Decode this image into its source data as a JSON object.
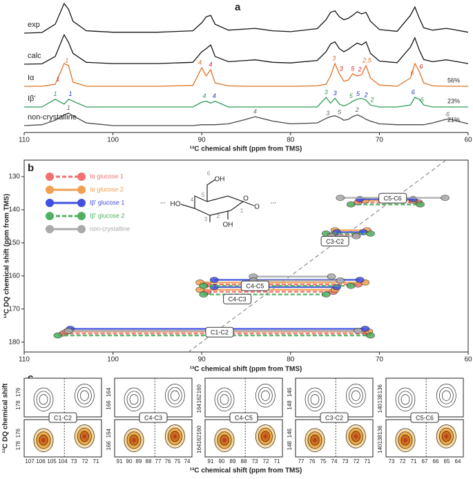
{
  "chart_data": [
    {
      "type": "line",
      "panel_label": "a",
      "x_label": "¹³C chemical shift (ppm from TMS)",
      "xlim": [
        110,
        60
      ],
      "xticks": [
        110,
        100,
        90,
        80,
        70,
        60
      ],
      "x": [
        110,
        108,
        106.5,
        105.5,
        105,
        104.5,
        103,
        100,
        95,
        91,
        90,
        89.5,
        89,
        88.5,
        87,
        85,
        84,
        82,
        80,
        77,
        76,
        75.5,
        75,
        74.5,
        74,
        73.5,
        73,
        72.5,
        72,
        71.5,
        71,
        70,
        68,
        66.5,
        66,
        65.5,
        65,
        64,
        62.5,
        62,
        60
      ],
      "series": [
        {
          "name": "exp",
          "color": "#111111",
          "values": [
            0,
            2,
            30,
            100,
            80,
            40,
            8,
            3,
            3,
            8,
            35,
            55,
            60,
            30,
            10,
            14,
            16,
            8,
            5,
            15,
            45,
            70,
            75,
            55,
            45,
            50,
            60,
            72,
            65,
            70,
            40,
            12,
            6,
            60,
            88,
            50,
            18,
            10,
            16,
            14,
            3
          ]
        },
        {
          "name": "calc",
          "color": "#111111",
          "values": [
            0,
            1,
            25,
            95,
            70,
            35,
            6,
            2,
            2,
            6,
            40,
            50,
            62,
            25,
            8,
            12,
            14,
            6,
            4,
            12,
            40,
            65,
            72,
            50,
            40,
            48,
            58,
            68,
            62,
            72,
            35,
            10,
            5,
            55,
            85,
            45,
            15,
            8,
            14,
            12,
            2
          ]
        },
        {
          "name": "Iα",
          "color": "#e07020",
          "share": "56%",
          "values": [
            0,
            0,
            5,
            55,
            50,
            10,
            0,
            0,
            0,
            2,
            45,
            25,
            40,
            8,
            1,
            0,
            0,
            0,
            0,
            1,
            5,
            25,
            55,
            30,
            12,
            15,
            30,
            25,
            28,
            50,
            20,
            3,
            0,
            20,
            55,
            35,
            8,
            1,
            0,
            0,
            0
          ],
          "annotations": [
            {
              "x": 106.2,
              "label": "1",
              "color": "#d62020"
            },
            {
              "x": 105.2,
              "label": "1",
              "color": "#e07020"
            },
            {
              "x": 90.2,
              "label": "4",
              "color": "#e07020"
            },
            {
              "x": 89,
              "label": "4",
              "color": "#d62020"
            },
            {
              "x": 75.1,
              "label": "3",
              "color": "#e07020"
            },
            {
              "x": 74.3,
              "label": "3",
              "color": "#d62020"
            },
            {
              "x": 73,
              "label": "5",
              "color": "#d62020"
            },
            {
              "x": 72.2,
              "label": "2",
              "color": "#d62020"
            },
            {
              "x": 71.4,
              "label": "2,5",
              "color": "#e07020"
            },
            {
              "x": 66.3,
              "label": "6",
              "color": "#e07020"
            },
            {
              "x": 65.3,
              "label": "6",
              "color": "#d62020"
            }
          ]
        },
        {
          "name": "Iβ'",
          "color": "#2e9b57",
          "share": "23%",
          "values": [
            0,
            0,
            8,
            3,
            8,
            6,
            0,
            0,
            0,
            0,
            5,
            6,
            4,
            6,
            0,
            0,
            0,
            0,
            0,
            0,
            10,
            4,
            9,
            3,
            1,
            3,
            6,
            8,
            9,
            7,
            2,
            0,
            0,
            2,
            10,
            8,
            2,
            0,
            0,
            0,
            0
          ],
          "annotations": [
            {
              "x": 106.5,
              "label": "1",
              "color": "#2e9b57"
            },
            {
              "x": 104.8,
              "label": "1",
              "color": "#2030c0"
            },
            {
              "x": 89.7,
              "label": "4",
              "color": "#2e9b57"
            },
            {
              "x": 88.6,
              "label": "4",
              "color": "#2030c0"
            },
            {
              "x": 76,
              "label": "3",
              "color": "#2e9b57"
            },
            {
              "x": 75,
              "label": "3",
              "color": "#2030c0"
            },
            {
              "x": 73.2,
              "label": "5",
              "color": "#2e9b57"
            },
            {
              "x": 72.4,
              "label": "5",
              "color": "#2030c0"
            },
            {
              "x": 71.5,
              "label": "2",
              "color": "#2030c0"
            },
            {
              "x": 70.8,
              "label": "2",
              "color": "#2e9b57"
            },
            {
              "x": 66.2,
              "label": "6",
              "color": "#2030c0"
            },
            {
              "x": 65.2,
              "label": "6",
              "color": "#2e9b57"
            }
          ]
        },
        {
          "name": "non-crystalline",
          "color": "#444444",
          "share": "21%",
          "values": [
            0,
            1,
            6,
            12,
            14,
            11,
            3,
            0,
            0,
            0,
            1,
            1,
            1,
            1,
            2,
            7,
            10,
            5,
            2,
            3,
            8,
            10,
            11,
            9,
            6,
            7,
            10,
            12,
            10,
            7,
            5,
            2,
            1,
            1,
            1,
            1,
            1,
            3,
            7,
            7,
            2
          ],
          "annotations": [
            {
              "x": 105,
              "label": "1",
              "color": "#666666"
            },
            {
              "x": 84,
              "label": "4",
              "color": "#666666"
            },
            {
              "x": 75.8,
              "label": "3",
              "color": "#666666"
            },
            {
              "x": 74.5,
              "label": "5",
              "color": "#666666"
            },
            {
              "x": 72.5,
              "label": "2",
              "color": "#666666"
            },
            {
              "x": 62.3,
              "label": "6",
              "color": "#666666"
            }
          ]
        }
      ]
    },
    {
      "type": "scatter",
      "panel_label": "b",
      "x_label": "¹³C chemical shift (ppm from TMS)",
      "y_label": "¹³C DQ chemical shift (ppm from TMS)",
      "xlim": [
        110,
        60
      ],
      "xticks": [
        110,
        100,
        90,
        80,
        70,
        60
      ],
      "ylim": [
        125,
        183
      ],
      "yticks": [
        130,
        140,
        150,
        160,
        170,
        180
      ],
      "series": [
        {
          "name": "Iα glucose 1",
          "color": "#f07070",
          "dash": true,
          "segments": [
            [
              105.6,
              71.4,
              177.4
            ],
            [
              89.4,
              75.2,
              164.8
            ],
            [
              89.4,
              72.4,
              162.6
            ],
            [
              75.2,
              72.6,
              147.6
            ],
            [
              72.4,
              65.6,
              137.8
            ]
          ]
        },
        {
          "name": "Iα glucose 2",
          "color": "#f0a050",
          "dash": false,
          "segments": [
            [
              105.2,
              71.2,
              176.8
            ],
            [
              90.2,
              75.0,
              164.2
            ],
            [
              90.2,
              71.6,
              162.0
            ],
            [
              75.0,
              71.4,
              146.2
            ],
            [
              71.6,
              66.2,
              137.2
            ]
          ]
        },
        {
          "name": "Iβ' glucose 1",
          "color": "#4050e0",
          "dash": false,
          "segments": [
            [
              104.8,
              71.6,
              176.0
            ],
            [
              88.6,
              74.8,
              163.4
            ],
            [
              88.6,
              72.2,
              161.2
            ],
            [
              74.8,
              71.8,
              146.8
            ],
            [
              72.2,
              66.2,
              136.8
            ]
          ]
        },
        {
          "name": "Iβ' glucose 2",
          "color": "#50b060",
          "dash": true,
          "segments": [
            [
              106.2,
              71.0,
              178.0
            ],
            [
              89.8,
              76.0,
              165.6
            ],
            [
              89.8,
              73.2,
              163.0
            ],
            [
              76.0,
              71.0,
              147.2
            ],
            [
              73.2,
              65.4,
              138.4
            ]
          ]
        },
        {
          "name": "non-crystalline",
          "color": "#aaaaaa",
          "dash": false,
          "segments": [
            [
              105.0,
              72.4,
              176.6
            ],
            [
              84.2,
              75.4,
              160.2
            ],
            [
              84.2,
              74.4,
              161.4
            ],
            [
              75.4,
              72.6,
              148.0
            ],
            [
              74.4,
              62.6,
              136.4
            ]
          ]
        }
      ],
      "labels": [
        {
          "text": "C1-C2",
          "x": 88,
          "y": 177
        },
        {
          "text": "C4-C5",
          "x": 84,
          "y": 163
        },
        {
          "text": "C4-C3",
          "x": 86,
          "y": 167
        },
        {
          "text": "C3-C2",
          "x": 75,
          "y": 149.5
        },
        {
          "text": "C5-C6",
          "x": 68.5,
          "y": 136.5
        }
      ],
      "structure_labels": [
        "6",
        "OH",
        "O",
        "4",
        "5",
        "HO",
        "3",
        "2",
        "OH",
        "1",
        "O",
        "...",
        "..."
      ]
    },
    {
      "type": "heatmap",
      "panel_label": "c",
      "x_label": "¹³C chemical shift (ppm from TMS)",
      "y_label": "¹³C DQ chemical shift",
      "panels": [
        {
          "label": "C1-C2",
          "xticks": [
            107,
            106,
            105,
            104,
            73,
            72,
            71
          ],
          "yticks_top": [
            176,
            178
          ],
          "yticks_bottom": [
            176,
            178
          ]
        },
        {
          "label": "C4-C3",
          "xticks": [
            91,
            90,
            89,
            88,
            77,
            76,
            75,
            74
          ],
          "yticks_top": [
            164,
            166
          ],
          "yticks_bottom": [
            164,
            166
          ]
        },
        {
          "label": "C4-C5",
          "xticks": [
            91,
            90,
            89,
            88,
            73,
            72,
            71
          ],
          "yticks_top": [
            160,
            162,
            164
          ],
          "yticks_bottom": [
            160,
            162,
            164
          ]
        },
        {
          "label": "C3-C2",
          "xticks": [
            77,
            76,
            75,
            74,
            73,
            72,
            71
          ],
          "yticks_top": [
            146,
            148
          ],
          "yticks_bottom": [
            146,
            148
          ]
        },
        {
          "label": "C5-C6",
          "xticks": [
            73,
            72,
            71,
            67,
            66,
            65,
            64
          ],
          "yticks_top": [
            136,
            138,
            140
          ],
          "yticks_bottom": [
            136,
            138,
            140
          ]
        }
      ]
    }
  ]
}
